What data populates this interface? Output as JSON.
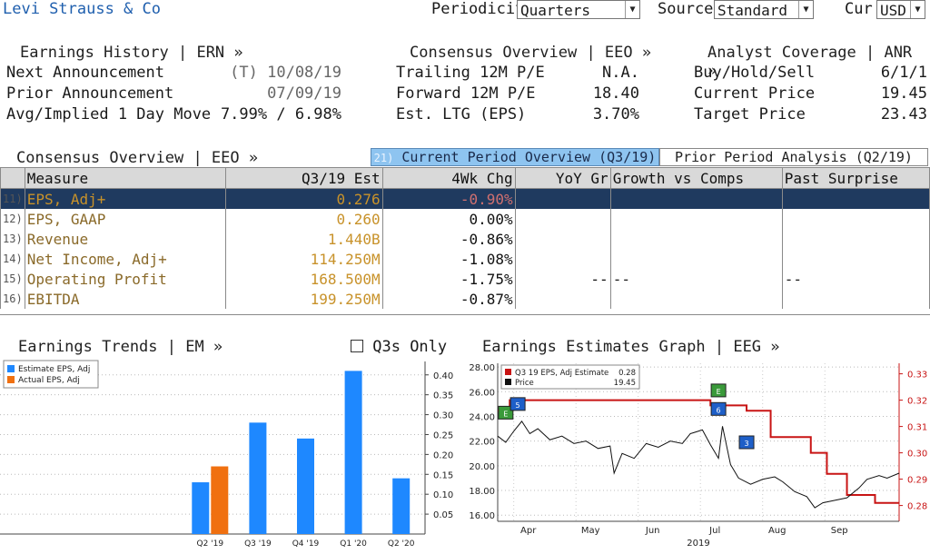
{
  "header": {
    "company": "Levi Strauss & Co",
    "periodicity_label": "Periodicity",
    "periodicity_value": "Quarters",
    "source_label": "Source",
    "source_value": "Standard",
    "cur_label": "Cur",
    "cur_value": "USD"
  },
  "earnings_history": {
    "title": "Earnings History | ERN »",
    "rows": [
      {
        "label": "Next Announcement",
        "value": "(T)  10/08/19"
      },
      {
        "label": "Prior Announcement",
        "value": "07/09/19"
      },
      {
        "label": "Avg/Implied 1 Day Move",
        "value": "7.99% / 6.98%"
      }
    ]
  },
  "consensus_top": {
    "title": "Consensus Overview | EEO »",
    "rows": [
      {
        "label": "Trailing 12M P/E",
        "value": "N.A."
      },
      {
        "label": "Forward 12M P/E",
        "value": "18.40"
      },
      {
        "label": "Est. LTG (EPS)",
        "value": "3.70%"
      }
    ]
  },
  "analyst": {
    "title": "Analyst Coverage | ANR »",
    "rows": [
      {
        "label": "Buy/Hold/Sell",
        "value": "6/1/1"
      },
      {
        "label": "Current Price",
        "value": "19.45"
      },
      {
        "label": "Target Price",
        "value": "23.43"
      }
    ]
  },
  "consensus_table": {
    "title": "Consensus Overview | EEO »",
    "tab_current": "Current Period Overview (Q3/19)",
    "tab_current_num": "21)",
    "tab_prior": "Prior Period Analysis (Q2/19)",
    "columns": [
      "Measure",
      "Q3/19 Est",
      "4Wk Chg",
      "YoY Gr",
      "Growth vs Comps",
      "Past Surprise"
    ],
    "rows": [
      {
        "num": "11)",
        "measure": "EPS, Adj+",
        "est": "0.276",
        "chg": "-0.90%",
        "yoy": "",
        "comps": "",
        "surprise": ""
      },
      {
        "num": "12)",
        "measure": "EPS, GAAP",
        "est": "0.260",
        "chg": "0.00%",
        "yoy": "",
        "comps": "",
        "surprise": ""
      },
      {
        "num": "13)",
        "measure": "Revenue",
        "est": "1.440B",
        "chg": "-0.86%",
        "yoy": "",
        "comps": "",
        "surprise": ""
      },
      {
        "num": "14)",
        "measure": "Net Income, Adj+",
        "est": "114.250M",
        "chg": "-1.08%",
        "yoy": "",
        "comps": "",
        "surprise": ""
      },
      {
        "num": "15)",
        "measure": "Operating Profit",
        "est": "168.500M",
        "chg": "-1.75%",
        "yoy": "--",
        "comps": "--",
        "surprise": "--"
      },
      {
        "num": "16)",
        "measure": "EBITDA",
        "est": "199.250M",
        "chg": "-0.87%",
        "yoy": "",
        "comps": "",
        "surprise": ""
      }
    ]
  },
  "earnings_trends": {
    "title": "Earnings Trends | EM »",
    "checkbox_label": "Q3s Only"
  },
  "estimates_graph": {
    "title": "Earnings Estimates Graph | EEG »"
  },
  "chart_data": [
    {
      "type": "bar",
      "categories": [
        "Q2 '19",
        "Q3 '19",
        "Q4 '19",
        "Q1 '20",
        "Q2 '20"
      ],
      "series": [
        {
          "name": "Estimate EPS, Adj",
          "color": "#1e88ff",
          "values": [
            0.13,
            0.28,
            0.24,
            0.41,
            0.14
          ]
        },
        {
          "name": "Actual EPS, Adj",
          "color": "#f07010",
          "values": [
            0.17,
            null,
            null,
            null,
            null
          ]
        }
      ],
      "ylim": [
        0,
        0.42
      ],
      "yticks": [
        "0.05",
        "0.10",
        "0.15",
        "0.20",
        "0.25",
        "0.30",
        "0.35",
        "0.40"
      ],
      "legend": "top-left"
    },
    {
      "type": "line",
      "xlabel": "2019",
      "x_ticks": [
        "Apr",
        "May",
        "Jun",
        "Jul",
        "Aug",
        "Sep"
      ],
      "left_ticks": [
        "16.00",
        "18.00",
        "20.00",
        "22.00",
        "24.00",
        "26.00",
        "28.00"
      ],
      "right_ticks": [
        "0.28",
        "0.29",
        "0.30",
        "0.31",
        "0.32",
        "0.33"
      ],
      "legend": [
        {
          "name": "Q3 19 EPS, Adj Estimate",
          "value": "0.28",
          "color": "#c81414"
        },
        {
          "name": "Price",
          "value": "19.45",
          "color": "#111111"
        }
      ],
      "estimate_series": {
        "axis": "right",
        "steps": [
          [
            0,
            0.316
          ],
          [
            0.03,
            0.32
          ],
          [
            0.53,
            0.318
          ],
          [
            0.62,
            0.316
          ],
          [
            0.68,
            0.306
          ],
          [
            0.78,
            0.3
          ],
          [
            0.82,
            0.292
          ],
          [
            0.87,
            0.284
          ],
          [
            0.94,
            0.281
          ],
          [
            1.0,
            0.281
          ]
        ]
      },
      "price_series": {
        "axis": "left",
        "points": [
          [
            0,
            22.4
          ],
          [
            0.02,
            21.9
          ],
          [
            0.04,
            22.8
          ],
          [
            0.06,
            23.6
          ],
          [
            0.08,
            22.6
          ],
          [
            0.1,
            23.0
          ],
          [
            0.13,
            22.1
          ],
          [
            0.16,
            22.4
          ],
          [
            0.19,
            21.8
          ],
          [
            0.22,
            22.0
          ],
          [
            0.25,
            21.4
          ],
          [
            0.28,
            21.6
          ],
          [
            0.29,
            19.4
          ],
          [
            0.31,
            21.0
          ],
          [
            0.34,
            20.6
          ],
          [
            0.37,
            21.8
          ],
          [
            0.4,
            21.5
          ],
          [
            0.43,
            22.0
          ],
          [
            0.46,
            21.8
          ],
          [
            0.48,
            22.6
          ],
          [
            0.51,
            22.9
          ],
          [
            0.53,
            21.7
          ],
          [
            0.55,
            20.6
          ],
          [
            0.56,
            23.2
          ],
          [
            0.58,
            20.1
          ],
          [
            0.6,
            19.0
          ],
          [
            0.63,
            18.5
          ],
          [
            0.66,
            18.9
          ],
          [
            0.69,
            19.1
          ],
          [
            0.71,
            18.7
          ],
          [
            0.74,
            17.9
          ],
          [
            0.77,
            17.5
          ],
          [
            0.79,
            16.6
          ],
          [
            0.81,
            17.0
          ],
          [
            0.84,
            17.2
          ],
          [
            0.87,
            17.4
          ],
          [
            0.9,
            18.2
          ],
          [
            0.92,
            18.9
          ],
          [
            0.95,
            19.2
          ],
          [
            0.97,
            19.0
          ],
          [
            1.0,
            19.4
          ]
        ]
      },
      "markers": [
        {
          "x": 0.02,
          "label": "E",
          "color": "#3a9a3a",
          "y": 24.3
        },
        {
          "x": 0.05,
          "label": "5",
          "color": "#1e5fc8",
          "y": 25.0
        },
        {
          "x": 0.55,
          "label": "E",
          "color": "#3a9a3a",
          "y": 26.1
        },
        {
          "x": 0.55,
          "label": "6",
          "color": "#1e5fc8",
          "y": 24.6
        },
        {
          "x": 0.62,
          "label": "3",
          "color": "#1e5fc8",
          "y": 21.9
        }
      ]
    }
  ]
}
